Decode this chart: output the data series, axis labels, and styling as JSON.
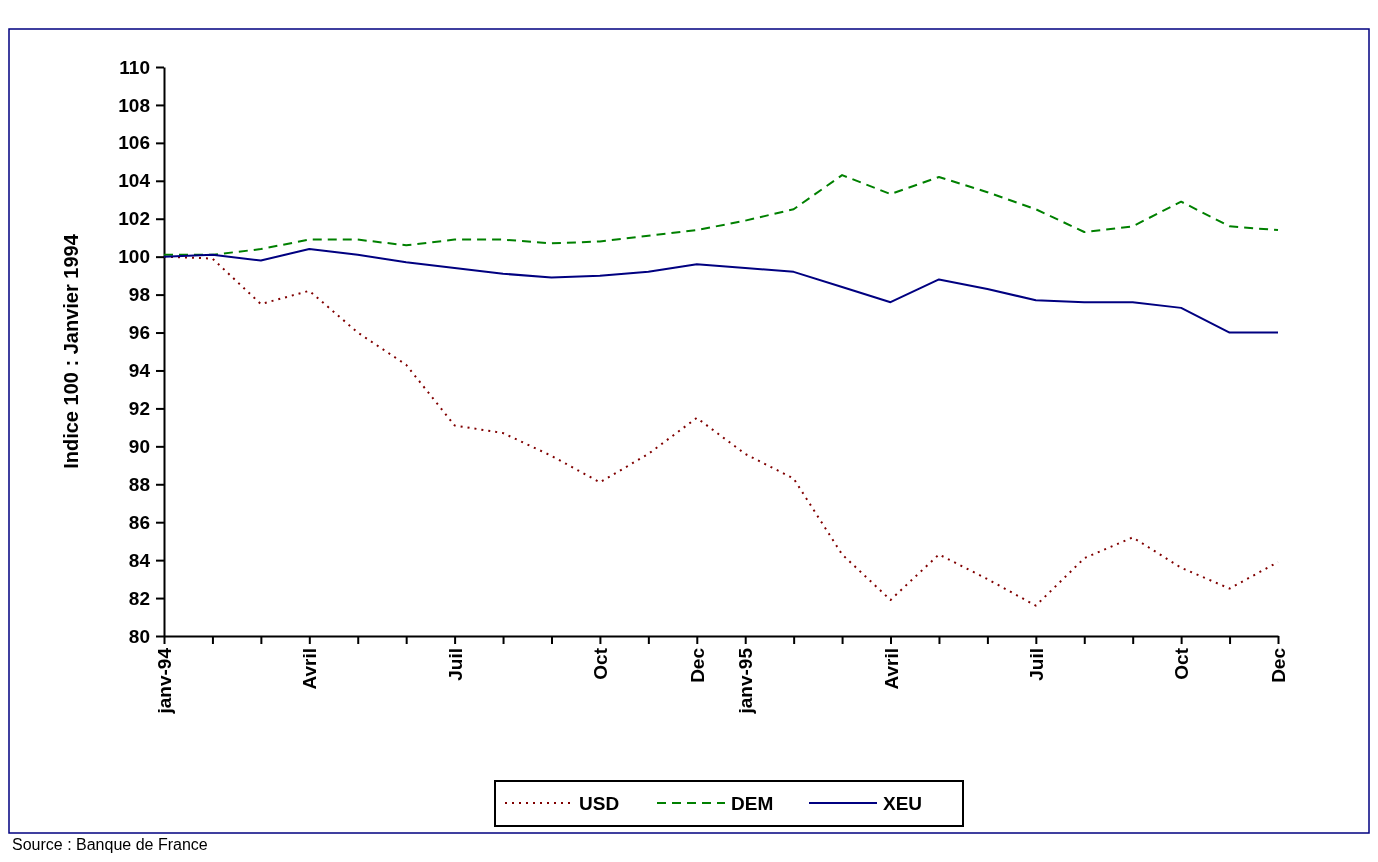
{
  "chart_data": {
    "type": "line",
    "ylabel": "Indice 100 : Janvier 1994",
    "categories": [
      "janv-94",
      null,
      null,
      "Avril",
      null,
      null,
      "Juil",
      null,
      null,
      "Oct",
      null,
      "Dec",
      "janv-95",
      null,
      null,
      "Avril",
      null,
      null,
      "Juil",
      null,
      null,
      "Oct",
      null,
      "Dec"
    ],
    "series": [
      {
        "name": "USD",
        "color": "#800000",
        "line_style": "dotted",
        "values": [
          100,
          99.9,
          97.5,
          98.2,
          96,
          94.3,
          91.1,
          90.7,
          89.5,
          88.1,
          89.6,
          91.5,
          89.6,
          88.3,
          84.3,
          81.9,
          84.3,
          83.0,
          81.6,
          84.1,
          85.2,
          83.6,
          82.5,
          83.9
        ]
      },
      {
        "name": "DEM",
        "color": "#008000",
        "line_style": "dashed",
        "values": [
          100.1,
          100.1,
          100.4,
          100.9,
          100.9,
          100.6,
          100.9,
          100.9,
          100.7,
          100.8,
          101.1,
          101.4,
          101.9,
          102.5,
          104.3,
          103.3,
          104.2,
          103.4,
          102.5,
          101.3,
          101.6,
          102.9,
          101.6,
          101.4
        ]
      },
      {
        "name": "XEU",
        "color": "#000080",
        "line_style": "solid",
        "values": [
          100,
          100.1,
          99.8,
          100.4,
          100.1,
          99.7,
          99.4,
          99.1,
          98.9,
          99.0,
          99.2,
          99.6,
          99.4,
          99.2,
          98.4,
          97.6,
          98.8,
          98.3,
          97.7,
          97.6,
          97.6,
          97.3,
          96.0,
          96.0
        ]
      }
    ],
    "ylim": [
      80,
      110
    ],
    "yticks": [
      80,
      82,
      84,
      86,
      88,
      90,
      92,
      94,
      96,
      98,
      100,
      102,
      104,
      106,
      108,
      110
    ],
    "legend": "bottom",
    "grid": false,
    "annotations": [
      "Source : Banque de France"
    ]
  }
}
